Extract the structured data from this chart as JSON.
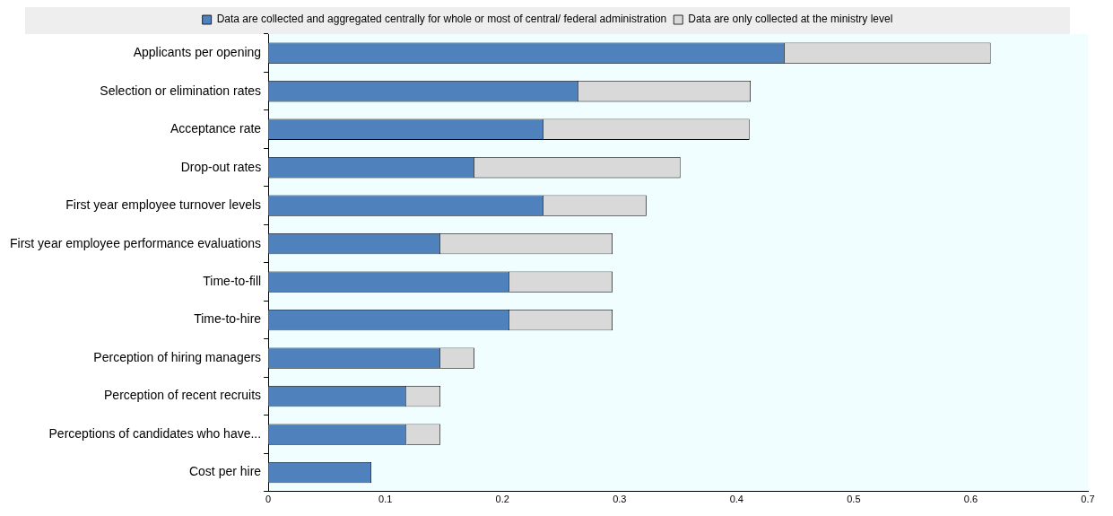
{
  "chart_data": {
    "type": "bar",
    "orientation": "horizontal",
    "stacked": true,
    "categories": [
      "Applicants per opening",
      "Selection or elimination rates",
      "Acceptance rate",
      "Drop-out rates",
      "First year employee turnover levels",
      "First year employee performance evaluations",
      "Time-to-fill",
      "Time-to-hire",
      "Perception of hiring managers",
      "Perception of recent recruits",
      "Perceptions of candidates who have...",
      "Cost per hire"
    ],
    "series": [
      {
        "name": "Data are collected and aggregated centrally for whole or most of central/ federal administration",
        "color": "#4f81bd",
        "values": [
          0.441,
          0.265,
          0.235,
          0.176,
          0.235,
          0.147,
          0.206,
          0.206,
          0.147,
          0.118,
          0.118,
          0.088
        ]
      },
      {
        "name": "Data are only collected at the ministry level",
        "color": "#d9d9d9",
        "values": [
          0.176,
          0.147,
          0.176,
          0.176,
          0.088,
          0.147,
          0.088,
          0.088,
          0.029,
          0.029,
          0.029,
          0
        ]
      }
    ],
    "xlim": [
      0,
      0.7
    ],
    "xticks": [
      0,
      0.1,
      0.2,
      0.3,
      0.4,
      0.5,
      0.6,
      0.7
    ],
    "grid": false,
    "legend": "top"
  }
}
